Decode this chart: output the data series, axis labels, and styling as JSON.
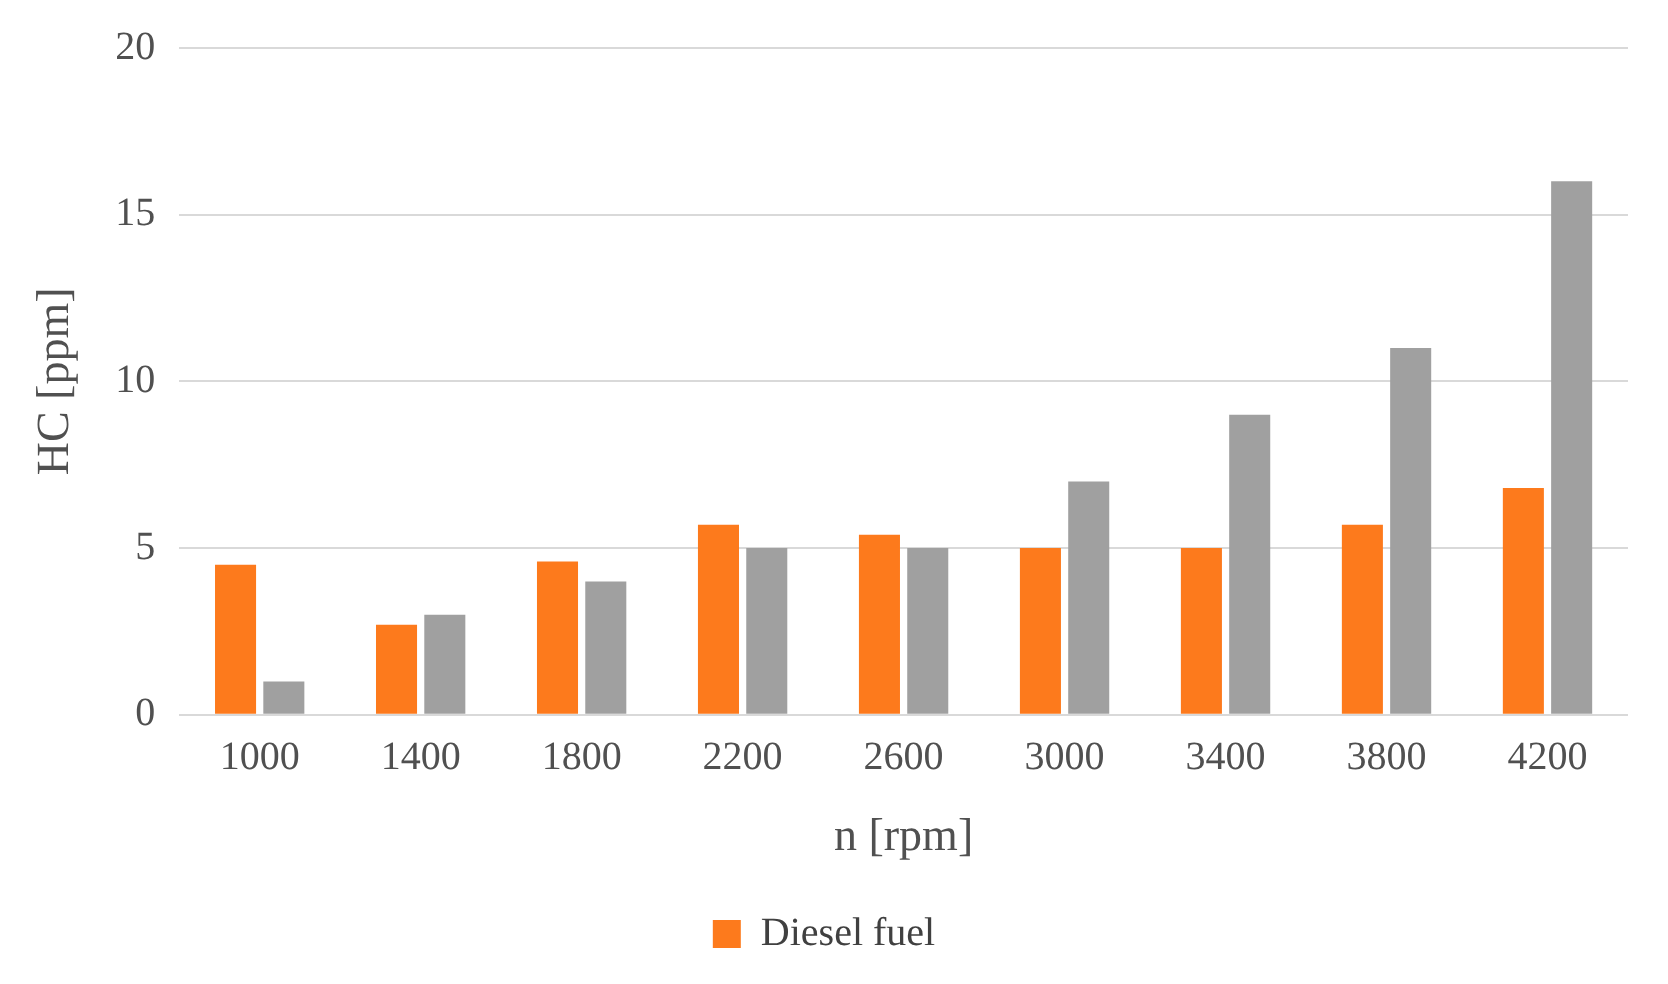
{
  "chart_data": {
    "type": "bar",
    "xlabel": "n [rpm]",
    "ylabel": "HC [ppm]",
    "categories": [
      "1000",
      "1400",
      "1800",
      "2200",
      "2600",
      "3000",
      "3400",
      "3800",
      "4200"
    ],
    "series": [
      {
        "name": "Diesel fuel",
        "color": "#fd7a1c",
        "values": [
          4.5,
          2.7,
          4.6,
          5.7,
          5.4,
          5.0,
          5.0,
          5.7,
          6.8
        ]
      },
      {
        "color": "#a0a0a0",
        "values": [
          1,
          3,
          4,
          5,
          5,
          7,
          9,
          11,
          16
        ]
      }
    ],
    "ylim": [
      0,
      20
    ],
    "yticks": [
      0,
      5,
      10,
      15,
      20
    ],
    "grid": "y",
    "legend": "bottom"
  }
}
